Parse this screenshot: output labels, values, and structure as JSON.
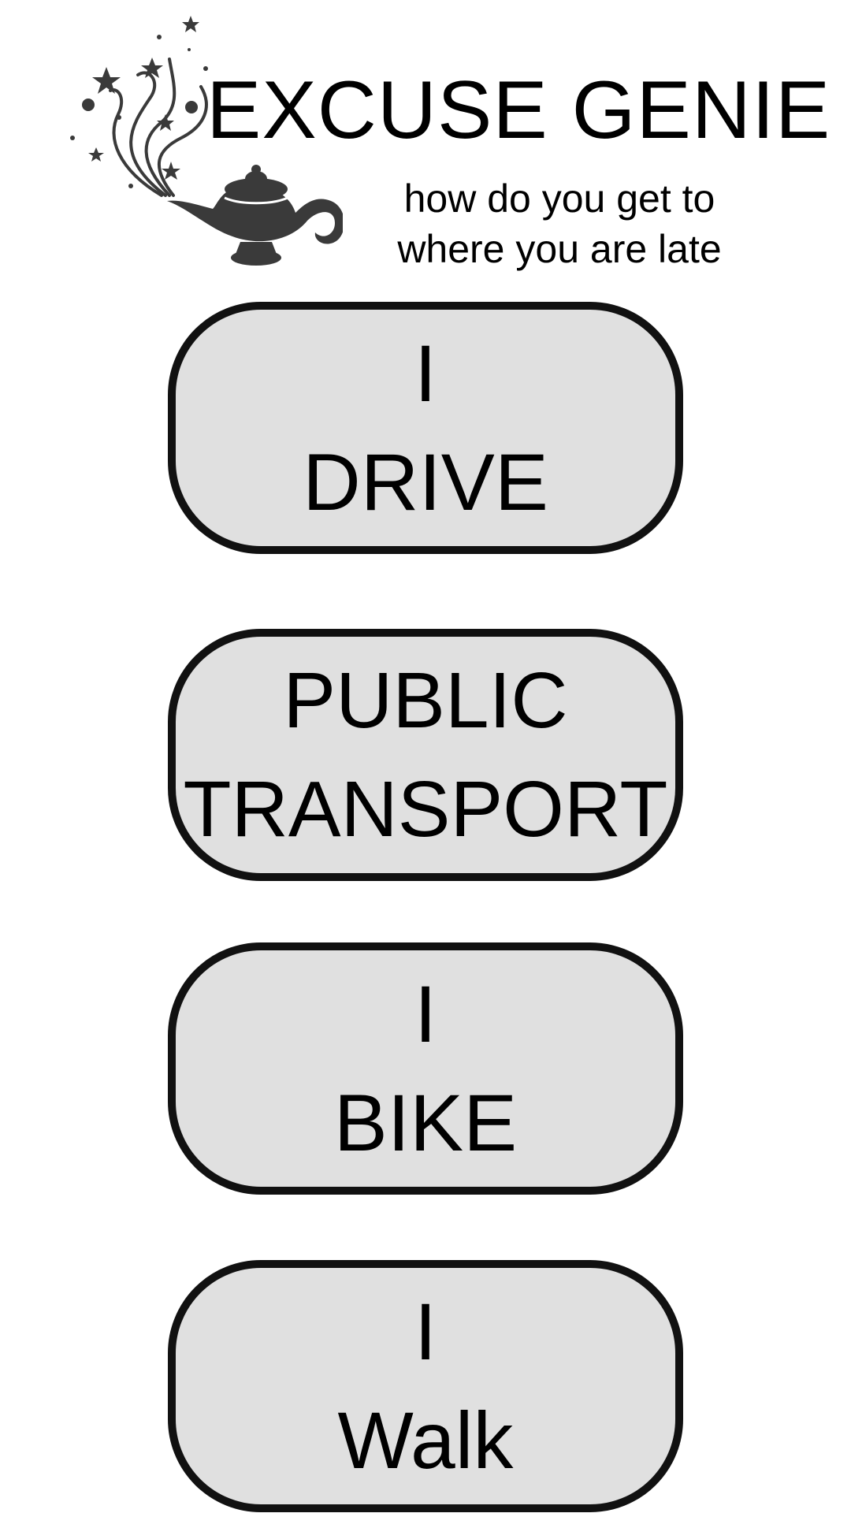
{
  "header": {
    "title": "EXCUSE GENIE",
    "subtitle_line1": "how do you get to",
    "subtitle_line2": "where you are late",
    "logo_icon": "genie-lamp-icon"
  },
  "options": [
    {
      "line1": "I",
      "line2": "DRIVE"
    },
    {
      "line1": "PUBLIC",
      "line2": "TRANSPORT"
    },
    {
      "line1": "I",
      "line2": "BIKE"
    },
    {
      "line1": "I",
      "line2": "Walk"
    }
  ],
  "colors": {
    "background": "#ffffff",
    "button_fill": "#e0e0e0",
    "button_border": "#111111",
    "logo": "#3a3a3a"
  }
}
